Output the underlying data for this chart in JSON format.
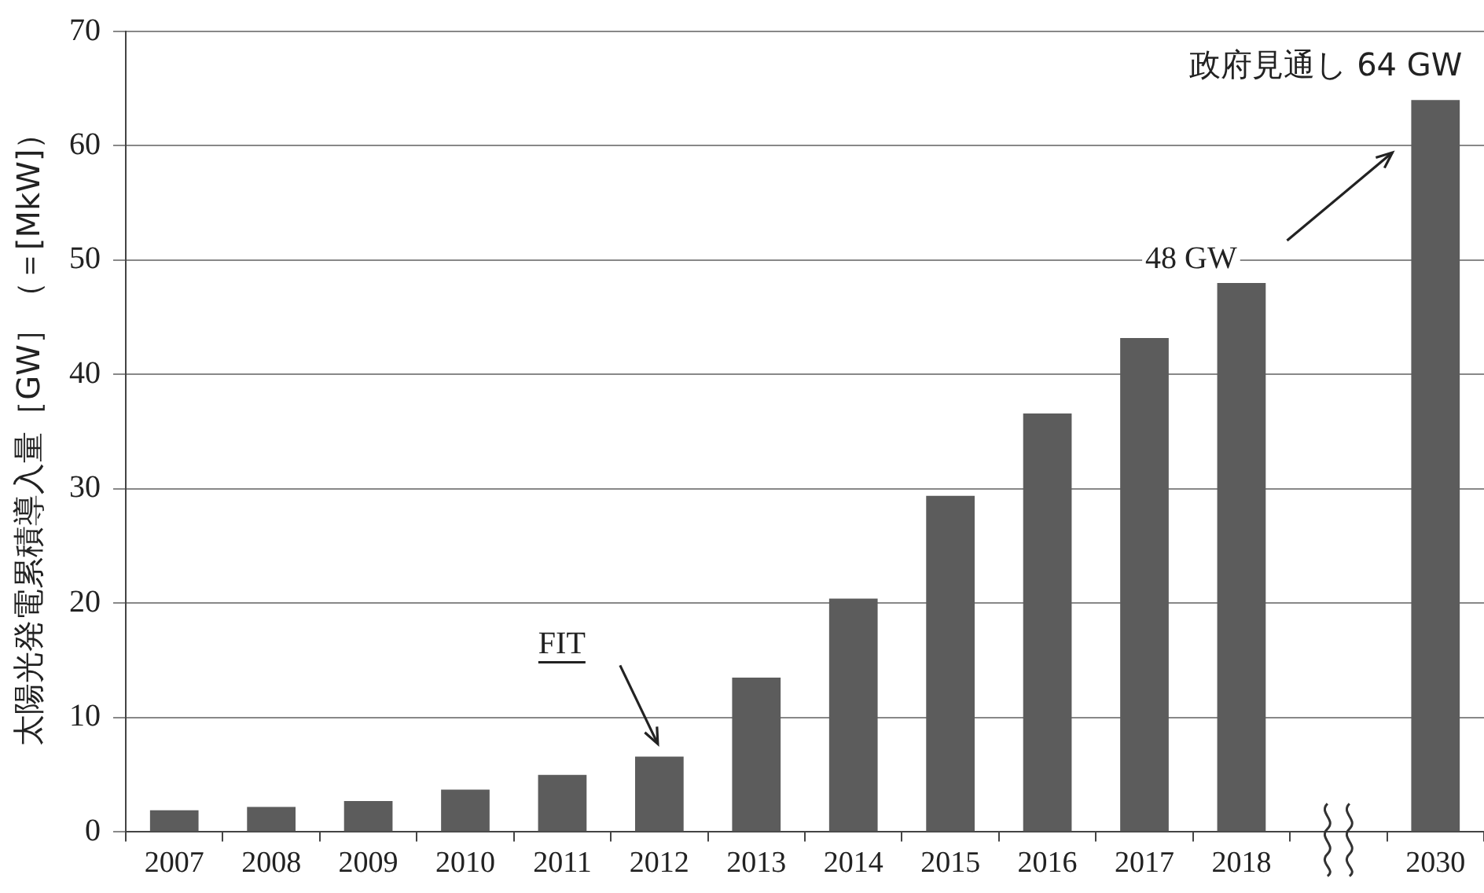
{
  "chart_data": {
    "type": "bar",
    "ylabel": "太陽光発電累積導入量［GW］（＝[MkW]）",
    "categories": [
      "2007",
      "2008",
      "2009",
      "2010",
      "2011",
      "2012",
      "2013",
      "2014",
      "2015",
      "2016",
      "2017",
      "2018",
      null,
      "2030"
    ],
    "values": [
      1.9,
      2.2,
      2.7,
      3.7,
      5.0,
      6.6,
      13.5,
      20.4,
      29.4,
      36.6,
      43.2,
      48,
      null,
      64
    ],
    "color": "#5c5c5c",
    "ylim": [
      0,
      70
    ],
    "yticks": [
      0,
      10,
      20,
      30,
      40,
      50,
      60,
      70
    ],
    "grid": "y",
    "legend": false,
    "annotations": [
      {
        "text": "FIT",
        "x": "2012",
        "y": 6.6
      },
      {
        "text": "48 GW",
        "x": "2018",
        "y": 48
      },
      {
        "text": "政府見通し 64 GW",
        "x": "2030",
        "y": 64
      }
    ]
  }
}
